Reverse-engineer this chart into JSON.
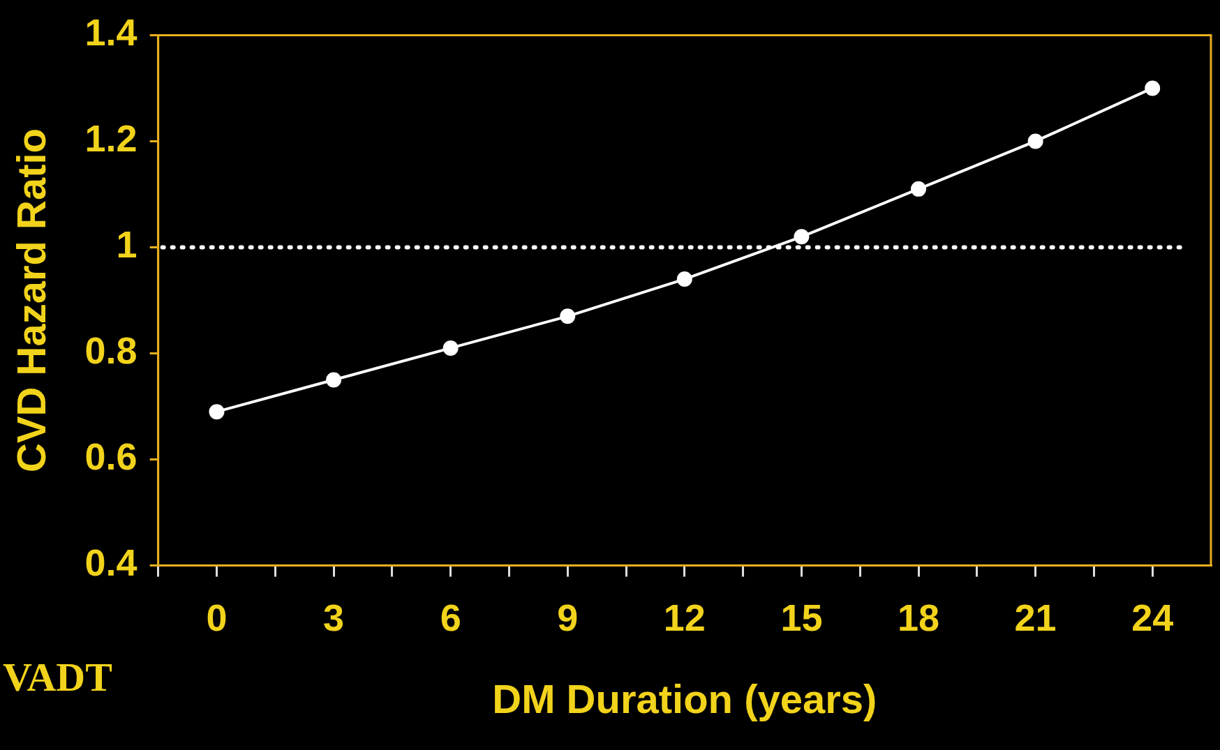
{
  "chart_data": {
    "type": "line",
    "xlabel": "DM Duration (years)",
    "ylabel": "CVD Hazard Ratio",
    "x": [
      0,
      3,
      6,
      9,
      12,
      15,
      18,
      21,
      24
    ],
    "series": [
      {
        "color": "#ffffff",
        "values": [
          0.69,
          0.75,
          0.81,
          0.87,
          0.94,
          1.02,
          1.11,
          1.2,
          1.3
        ]
      }
    ],
    "xlim": [
      -1.5,
      25.5
    ],
    "xticks": [
      {
        "value": -1.5,
        "label": null
      },
      0,
      {
        "value": 1.5,
        "label": null
      },
      3,
      {
        "value": 4.5,
        "label": null
      },
      6,
      {
        "value": 7.5,
        "label": null
      },
      9,
      {
        "value": 10.5,
        "label": null
      },
      12,
      {
        "value": 13.5,
        "label": null
      },
      15,
      {
        "value": 16.5,
        "label": null
      },
      18,
      {
        "value": 19.5,
        "label": null
      },
      21,
      {
        "value": 22.5,
        "label": null
      },
      24
    ],
    "ylim": [
      0.4,
      1.4
    ],
    "yticks": [
      0.4,
      0.6,
      0.8,
      1,
      1.2,
      1.4
    ],
    "ref_lines": [
      {
        "axis": "y",
        "value": 1,
        "color": "#ffffff",
        "line_style": "dotted"
      }
    ],
    "annotations": [
      "VADT"
    ],
    "grid": false,
    "legend": false,
    "marker": "circle",
    "line_style": "solid"
  }
}
